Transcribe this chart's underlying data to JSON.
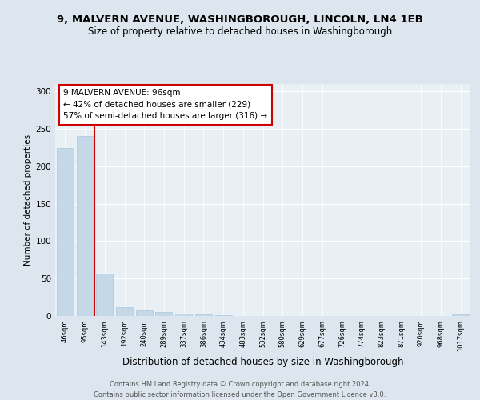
{
  "title_line1": "9, MALVERN AVENUE, WASHINGBOROUGH, LINCOLN, LN4 1EB",
  "title_line2": "Size of property relative to detached houses in Washingborough",
  "xlabel": "Distribution of detached houses by size in Washingborough",
  "ylabel": "Number of detached properties",
  "categories": [
    "46sqm",
    "95sqm",
    "143sqm",
    "192sqm",
    "240sqm",
    "289sqm",
    "337sqm",
    "386sqm",
    "434sqm",
    "483sqm",
    "532sqm",
    "580sqm",
    "629sqm",
    "677sqm",
    "726sqm",
    "774sqm",
    "823sqm",
    "871sqm",
    "920sqm",
    "968sqm",
    "1017sqm"
  ],
  "values": [
    225,
    240,
    57,
    12,
    8,
    5,
    3,
    2,
    1,
    0,
    0,
    0,
    0,
    0,
    0,
    0,
    0,
    0,
    0,
    0,
    2
  ],
  "bar_color": "#c5d8e8",
  "bar_edge_color": "#a8c8de",
  "vline_color": "#cc0000",
  "annotation_line1": "9 MALVERN AVENUE: 96sqm",
  "annotation_line2": "← 42% of detached houses are smaller (229)",
  "annotation_line3": "57% of semi-detached houses are larger (316) →",
  "annotation_box_color": "#ffffff",
  "annotation_box_edge": "#cc0000",
  "ylim": [
    0,
    310
  ],
  "yticks": [
    0,
    50,
    100,
    150,
    200,
    250,
    300
  ],
  "footer_text": "Contains HM Land Registry data © Crown copyright and database right 2024.\nContains public sector information licensed under the Open Government Licence v3.0.",
  "bg_color": "#dde6ee",
  "plot_bg_color": "#e8f0f6",
  "title_fontsize": 9.5,
  "subtitle_fontsize": 8.5
}
